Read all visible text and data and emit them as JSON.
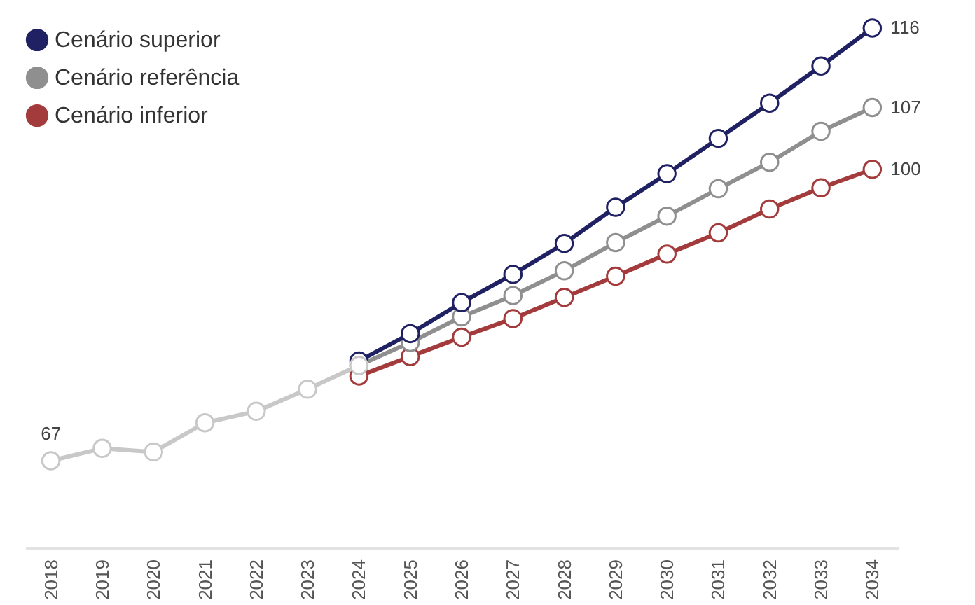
{
  "chart_data": {
    "type": "line",
    "categories": [
      "2018",
      "2019",
      "2020",
      "2021",
      "2022",
      "2023",
      "2024",
      "2025",
      "2026",
      "2027",
      "2028",
      "2029",
      "2030",
      "2031",
      "2032",
      "2033",
      "2034"
    ],
    "series": [
      {
        "color": "#c8c8c8",
        "values": [
          67,
          68.4,
          68,
          71.3,
          72.6,
          75.1,
          77.8,
          null,
          null,
          null,
          null,
          null,
          null,
          null,
          null,
          null,
          null
        ],
        "value_labels": [
          "67",
          null,
          null,
          null,
          null,
          null,
          null,
          null,
          null,
          null,
          null,
          null,
          null,
          null,
          null,
          null,
          null
        ]
      },
      {
        "name": "Cenário superior",
        "color": "#1f2163",
        "values": [
          null,
          null,
          null,
          null,
          null,
          null,
          78.3,
          81.4,
          84.9,
          88.1,
          91.6,
          95.7,
          99.5,
          103.5,
          107.5,
          111.7,
          116
        ],
        "value_labels": [
          null,
          null,
          null,
          null,
          null,
          null,
          null,
          null,
          null,
          null,
          null,
          null,
          null,
          null,
          null,
          null,
          "116"
        ]
      },
      {
        "name": "Cenário referência",
        "color": "#8f8f8f",
        "values": [
          null,
          null,
          null,
          null,
          null,
          null,
          77.8,
          80.4,
          83.3,
          85.7,
          88.5,
          91.7,
          94.7,
          97.8,
          100.8,
          104.3,
          107
        ],
        "value_labels": [
          null,
          null,
          null,
          null,
          null,
          null,
          null,
          null,
          null,
          null,
          null,
          null,
          null,
          null,
          null,
          null,
          "107"
        ]
      },
      {
        "name": "Cenário inferior",
        "color": "#a33a3c",
        "values": [
          null,
          null,
          null,
          null,
          null,
          null,
          76.6,
          78.8,
          81,
          83.1,
          85.5,
          87.9,
          90.4,
          92.8,
          95.5,
          97.9,
          100
        ],
        "value_labels": [
          null,
          null,
          null,
          null,
          null,
          null,
          null,
          null,
          null,
          null,
          null,
          null,
          null,
          null,
          null,
          null,
          "100"
        ]
      }
    ],
    "marker": "circle",
    "legend": "top left"
  }
}
